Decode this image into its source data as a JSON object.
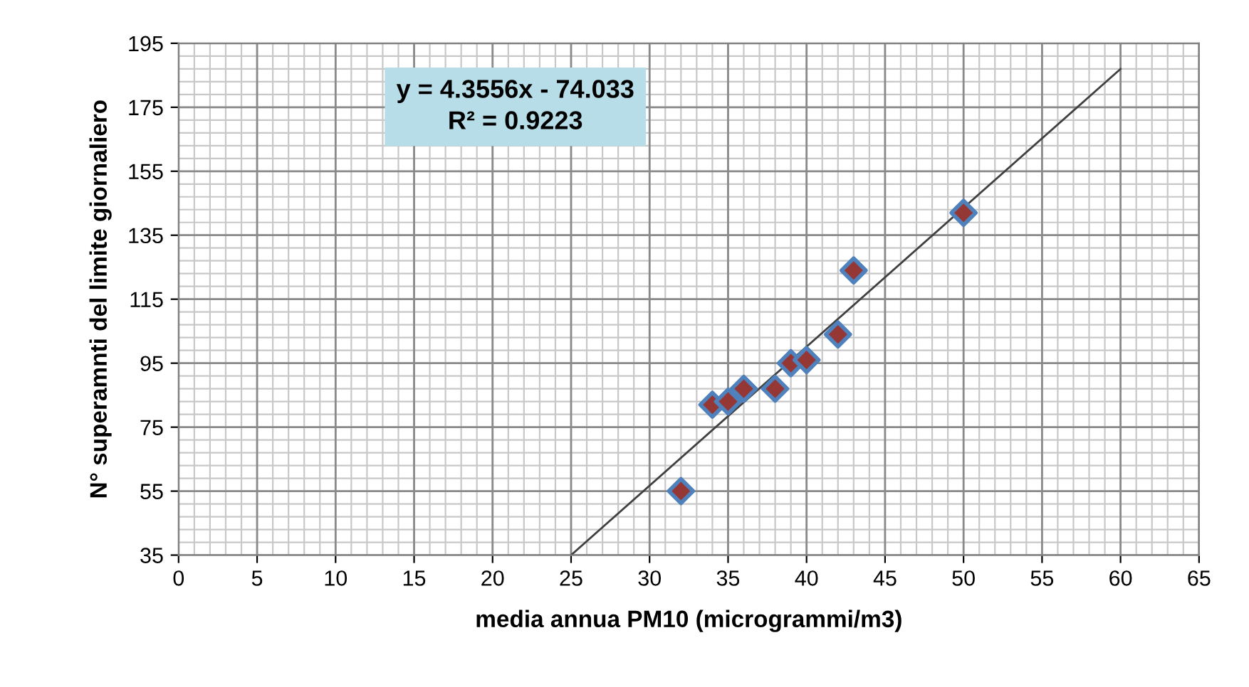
{
  "chart_data": {
    "type": "scatter",
    "xlabel": "media annua PM10 (microgrammi/m3)",
    "ylabel": "N° superamnti del limite giornaliero",
    "xlim": [
      0,
      65
    ],
    "xticks": [
      0,
      5,
      10,
      15,
      20,
      25,
      30,
      35,
      40,
      45,
      50,
      55,
      60,
      65
    ],
    "ylim": [
      35,
      195
    ],
    "yticks": [
      35,
      55,
      75,
      95,
      115,
      135,
      155,
      175,
      195
    ],
    "grid": true,
    "series": [
      {
        "marker": "diamond",
        "color": "#953735",
        "x": [
          32,
          34,
          35,
          36,
          38,
          39,
          40,
          42,
          43,
          50
        ],
        "values": [
          55,
          82,
          83,
          87,
          87,
          95,
          96,
          104,
          124,
          142
        ]
      },
      {
        "type": "line",
        "marker": "none",
        "color": "#404040",
        "x": [
          25,
          60
        ],
        "values": [
          35,
          187
        ]
      }
    ],
    "annotations": [
      "y = 4.3556x - 74.033\nR² = 0.9223"
    ]
  }
}
